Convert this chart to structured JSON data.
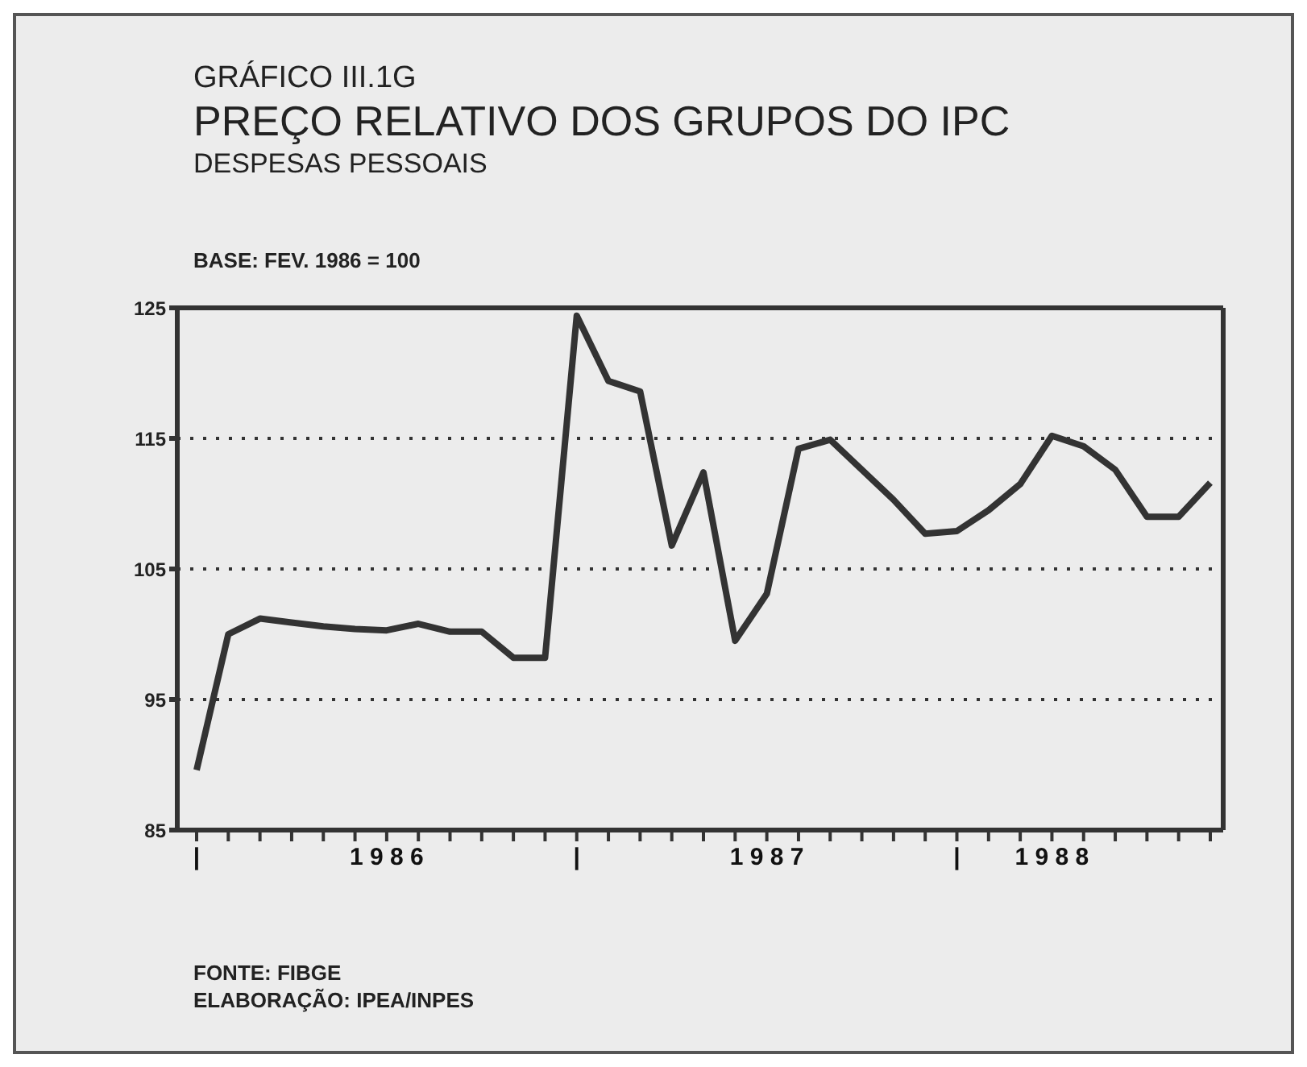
{
  "chart_data": {
    "type": "line",
    "title": "PREÇO RELATIVO DOS GRUPOS DO IPC",
    "subtitle": "DESPESAS PESSOAIS",
    "ylabel": "BASE: FEV. 1986 = 100",
    "annotations": [
      "GRÁFICO III.1G",
      "FONTE: FIBGE",
      "ELABORAÇÃO: IPEA/INPES"
    ],
    "categories": [
      "|",
      null,
      null,
      null,
      null,
      null,
      "1 9 8 6",
      null,
      null,
      null,
      null,
      null,
      "|",
      null,
      null,
      null,
      null,
      null,
      "1 9 8 7",
      null,
      null,
      null,
      null,
      null,
      "|",
      null,
      null,
      "1 9 8 8",
      null,
      null,
      null,
      null,
      null
    ],
    "series": [
      {
        "color": "#333333",
        "values": [
          89.6,
          100.0,
          101.2,
          100.9,
          100.6,
          100.4,
          100.3,
          100.8,
          100.2,
          100.2,
          98.2,
          98.2,
          124.4,
          119.4,
          118.6,
          106.8,
          112.4,
          99.5,
          103.1,
          114.2,
          114.9,
          112.6,
          110.3,
          107.7,
          107.9,
          109.5,
          111.5,
          115.2,
          114.4,
          112.6,
          109.0,
          109.0,
          111.6
        ]
      }
    ],
    "ylim": [
      85,
      125
    ],
    "yticks": [
      85,
      95,
      105,
      115,
      125
    ],
    "grid": "y",
    "legend": false,
    "marker": "none",
    "line_style": "solid"
  }
}
